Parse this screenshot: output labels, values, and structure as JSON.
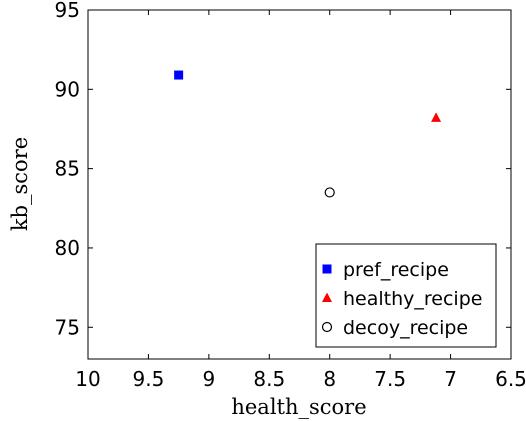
{
  "chart_data": {
    "type": "scatter",
    "title": "",
    "xlabel": "health_score",
    "ylabel": "kb_score",
    "xlim": [
      10,
      6.5
    ],
    "ylim": [
      73,
      95
    ],
    "x_reversed": true,
    "xticks": [
      "10",
      "9.5",
      "9",
      "8.5",
      "8",
      "7.5",
      "7",
      "6.5"
    ],
    "yticks": [
      "75",
      "80",
      "85",
      "90",
      "95"
    ],
    "grid": false,
    "legend_position": "bottom-right",
    "series": [
      {
        "name": "pref_recipe",
        "marker": "square",
        "color": "#0000ff",
        "points": [
          {
            "x": 9.25,
            "y": 90.9
          }
        ]
      },
      {
        "name": "healthy_recipe",
        "marker": "triangle",
        "color": "#ff0000",
        "points": [
          {
            "x": 7.12,
            "y": 88.2
          }
        ]
      },
      {
        "name": "decoy_recipe",
        "marker": "circle",
        "color": "#000000",
        "points": [
          {
            "x": 8.0,
            "y": 83.5
          }
        ]
      }
    ]
  }
}
